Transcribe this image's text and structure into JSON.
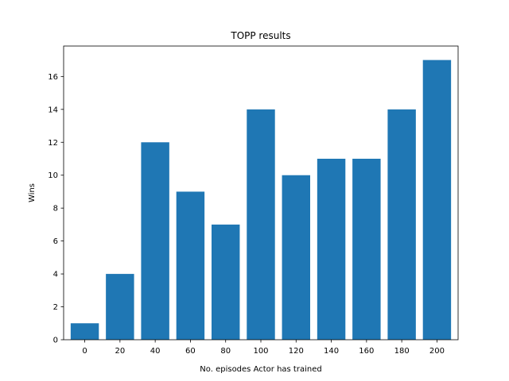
{
  "chart_data": {
    "type": "bar",
    "title": "TOPP results",
    "xlabel": "No. episodes Actor has trained",
    "ylabel": "Wins",
    "categories": [
      "0",
      "20",
      "40",
      "60",
      "80",
      "100",
      "120",
      "140",
      "160",
      "180",
      "200"
    ],
    "values": [
      1,
      4,
      12,
      9,
      7,
      14,
      10,
      11,
      11,
      14,
      17
    ],
    "ylim": [
      0,
      17.85
    ],
    "yticks": [
      "0",
      "2",
      "4",
      "6",
      "8",
      "10",
      "12",
      "14",
      "16"
    ],
    "grid": false,
    "bar_color": "#1f77b4"
  }
}
